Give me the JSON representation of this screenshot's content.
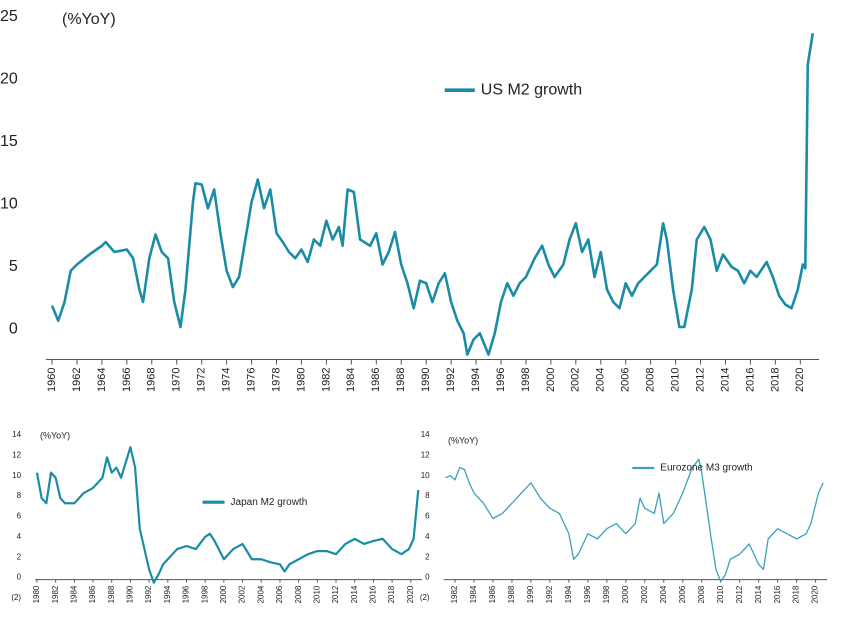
{
  "chart_data": [
    {
      "type": "line",
      "annotation": "(%YoY)",
      "legend": "upper center",
      "xlim": [
        1959.5,
        2021.5
      ],
      "ylim": [
        -1.6,
        25
      ],
      "xticks": [
        1960,
        1962,
        1964,
        1966,
        1968,
        1970,
        1972,
        1974,
        1976,
        1978,
        1980,
        1982,
        1984,
        1986,
        1988,
        1990,
        1992,
        1994,
        1996,
        1998,
        2000,
        2002,
        2004,
        2006,
        2008,
        2010,
        2012,
        2014,
        2016,
        2018,
        2020
      ],
      "yticks": [
        0,
        5,
        10,
        15,
        20,
        25
      ],
      "x": [
        1960,
        1960.5,
        1961,
        1961.5,
        1962,
        1963,
        1964,
        1964.3,
        1965,
        1966,
        1966.5,
        1967,
        1967.3,
        1967.8,
        1968.3,
        1968.8,
        1969.3,
        1969.8,
        1970.3,
        1970.7,
        1971.3,
        1971.5,
        1972,
        1972.5,
        1973,
        1973.5,
        1974,
        1974.5,
        1975,
        1975.5,
        1976,
        1976.5,
        1977,
        1977.5,
        1978,
        1978.5,
        1979,
        1979.5,
        1980,
        1980.5,
        1981,
        1981.5,
        1982,
        1982.5,
        1983,
        1983.3,
        1983.7,
        1984.2,
        1984.7,
        1985.5,
        1986,
        1986.5,
        1987,
        1987.5,
        1988,
        1988.5,
        1989,
        1989.5,
        1990,
        1990.5,
        1991,
        1991.5,
        1992,
        1992.5,
        1993,
        1993.3,
        1993.8,
        1994.3,
        1995,
        1995.5,
        1996,
        1996.5,
        1997,
        1997.5,
        1998,
        1998.7,
        1999.3,
        1999.8,
        2000.3,
        2001,
        2001.5,
        2002,
        2002.5,
        2003,
        2003.5,
        2004,
        2004.5,
        2005,
        2005.5,
        2006,
        2006.5,
        2007,
        2007.5,
        2008,
        2008.5,
        2009,
        2009.3,
        2009.8,
        2010.3,
        2010.7,
        2011.3,
        2011.7,
        2012.3,
        2012.8,
        2013.3,
        2013.8,
        2014.5,
        2015,
        2015.5,
        2016,
        2016.5,
        2017.3,
        2017.8,
        2018.3,
        2018.8,
        2019.3,
        2019.8,
        2020.2,
        2020.4,
        2020.6,
        2021
      ],
      "series": [
        {
          "name": "US M2 growth",
          "color": "#1b8ca6",
          "values": [
            2.7,
            1.5,
            3,
            5.5,
            6,
            6.8,
            7.5,
            7.8,
            7,
            7.2,
            6.5,
            4,
            3,
            6.5,
            8.4,
            7,
            6.5,
            3,
            1,
            4,
            11,
            12.5,
            12.4,
            10.5,
            12,
            8.5,
            5.5,
            4.2,
            5,
            8,
            11,
            12.8,
            10.5,
            12,
            8.5,
            7.8,
            7,
            6.5,
            7.2,
            6.2,
            8,
            7.5,
            9.5,
            8,
            9,
            7.5,
            12,
            11.8,
            8,
            7.5,
            8.5,
            6,
            7,
            8.6,
            6,
            4.5,
            2.5,
            4.7,
            4.5,
            3,
            4.5,
            5.3,
            3,
            1.5,
            0.5,
            -1.2,
            0,
            0.5,
            -1.2,
            0.5,
            3,
            4.5,
            3.5,
            4.5,
            5,
            6.5,
            7.5,
            6,
            5,
            6,
            8,
            9.3,
            7,
            8,
            5,
            7,
            4,
            3,
            2.5,
            4.5,
            3.5,
            4.5,
            5,
            5.5,
            6,
            9.3,
            8,
            4,
            1,
            1,
            4,
            8,
            9,
            8,
            5.5,
            6.8,
            5.8,
            5.5,
            4.5,
            5.5,
            5,
            6.2,
            5,
            3.5,
            2.8,
            2.5,
            4,
            6,
            5.7,
            22,
            24.5
          ]
        }
      ]
    },
    {
      "type": "line",
      "annotation": "(%YoY)",
      "legend": "center",
      "xlim": [
        1979.8,
        2021.2
      ],
      "ylim": [
        -2,
        14
      ],
      "xticks": [
        1980,
        1982,
        1984,
        1986,
        1988,
        1990,
        1992,
        1994,
        1996,
        1998,
        2000,
        2002,
        2004,
        2006,
        2008,
        2010,
        2012,
        2014,
        2016,
        2018,
        2020
      ],
      "yticks": [
        {
          "value": -2,
          "label": "(2)"
        },
        0,
        2,
        4,
        6,
        8,
        10,
        12,
        14
      ],
      "x": [
        1980,
        1980.5,
        1981,
        1981.5,
        1982,
        1982.5,
        1983,
        1984,
        1985,
        1986,
        1987,
        1987.5,
        1988,
        1988.5,
        1989,
        1989.5,
        1990,
        1990.5,
        1991,
        1991.5,
        1992,
        1992.5,
        1993,
        1993.5,
        1994,
        1995,
        1996,
        1997,
        1998,
        1998.5,
        1999,
        2000,
        2001,
        2002,
        2003,
        2004,
        2005,
        2006,
        2006.5,
        2007,
        2008,
        2009,
        2010,
        2011,
        2012,
        2013,
        2014,
        2015,
        2016,
        2017,
        2018,
        2019,
        2019.8,
        2020.3,
        2020.8
      ],
      "series": [
        {
          "name": "Japan M2 growth",
          "color": "#1b8ca6",
          "values": [
            10.5,
            8,
            7.5,
            10.5,
            10,
            8,
            7.5,
            7.5,
            8.5,
            9,
            10,
            12,
            10.5,
            11,
            10,
            11.5,
            13,
            11,
            5,
            3,
            1,
            -0.3,
            0.5,
            1.5,
            2,
            3,
            3.3,
            3,
            4.2,
            4.5,
            3.8,
            2,
            3,
            3.5,
            2,
            2,
            1.7,
            1.5,
            0.8,
            1.5,
            2,
            2.5,
            2.8,
            2.8,
            2.5,
            3.5,
            4,
            3.5,
            3.8,
            4,
            3,
            2.5,
            3,
            4,
            8.8
          ]
        }
      ]
    },
    {
      "type": "line",
      "annotation": "(%YoY)",
      "legend": "upper center",
      "xlim": [
        1980.8,
        2021.2
      ],
      "ylim": [
        -2,
        14
      ],
      "xticks": [
        1982,
        1984,
        1986,
        1988,
        1990,
        1992,
        1994,
        1996,
        1998,
        2000,
        2002,
        2004,
        2006,
        2008,
        2010,
        2012,
        2014,
        2016,
        2018,
        2020
      ],
      "yticks": [
        {
          "value": -2,
          "label": "(2)"
        },
        0,
        2,
        4,
        6,
        8,
        10,
        12,
        14
      ],
      "x": [
        1981,
        1981.5,
        1982,
        1982.5,
        1983,
        1983.5,
        1984,
        1985,
        1986,
        1987,
        1988,
        1989,
        1990,
        1991,
        1992,
        1993,
        1994,
        1994.5,
        1995,
        1996,
        1997,
        1998,
        1999,
        2000,
        2001,
        2001.5,
        2002,
        2003,
        2003.5,
        2004,
        2005,
        2006,
        2007,
        2007.7,
        2008,
        2009,
        2009.5,
        2010,
        2010.5,
        2011,
        2012,
        2013,
        2014,
        2014.5,
        2015,
        2016,
        2017,
        2018,
        2019,
        2019.5,
        2020.3,
        2020.8
      ],
      "series": [
        {
          "name": "Eurozone M3 growth",
          "color": "#3aa3b8",
          "values": [
            10,
            10.2,
            9.8,
            11,
            10.8,
            9.5,
            8.5,
            7.5,
            6,
            6.5,
            7.5,
            8.5,
            9.5,
            8,
            7,
            6.5,
            4.5,
            2,
            2.5,
            4.5,
            4,
            5,
            5.5,
            4.5,
            5.5,
            8,
            7,
            6.5,
            8.5,
            5.5,
            6.5,
            8.5,
            11,
            11.8,
            10.5,
            4,
            1,
            -0.2,
            0.5,
            2,
            2.5,
            3.5,
            1.5,
            1,
            4,
            5,
            4.5,
            4,
            4.5,
            5.5,
            8.5,
            9.5
          ]
        }
      ]
    }
  ]
}
